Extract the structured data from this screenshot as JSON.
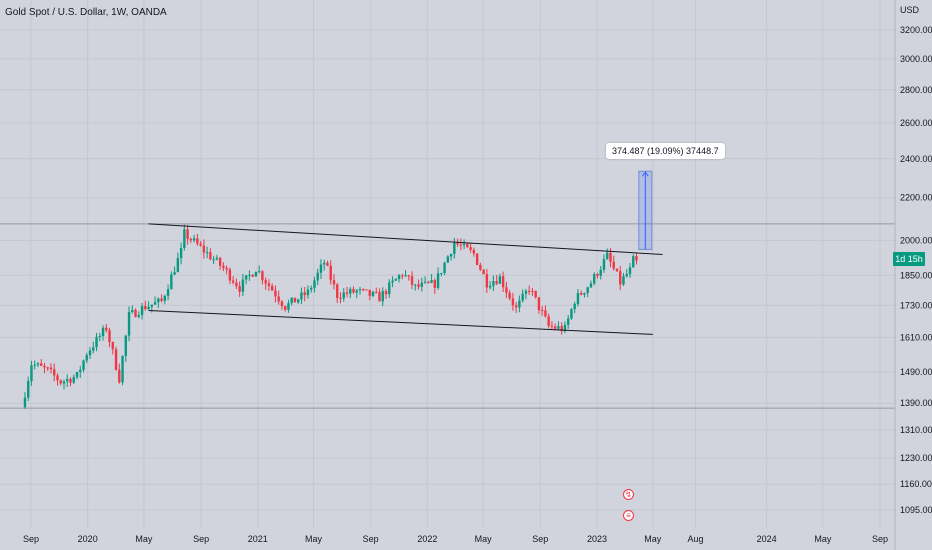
{
  "chart_data": {
    "type": "candlestick",
    "title": "Gold Spot / U.S. Dollar, 1W, OANDA",
    "y_unit": "USD",
    "scale": "log",
    "ylim": [
      1050,
      3450
    ],
    "y_ticks": [
      "3200.000",
      "3000.000",
      "2800.000",
      "2600.000",
      "2400.000",
      "2200.000",
      "2000.000",
      "1850.000",
      "1730.000",
      "1610.000",
      "1490.000",
      "1390.000",
      "1310.000",
      "1230.000",
      "1160.000",
      "1095.000"
    ],
    "x_ticks": [
      "Sep",
      "2020",
      "May",
      "Sep",
      "2021",
      "May",
      "Sep",
      "2022",
      "May",
      "Sep",
      "2023",
      "May",
      "Aug",
      "2024",
      "May",
      "Sep"
    ],
    "x_tick_dates": [
      "2019-09-01",
      "2020-01-01",
      "2020-05-01",
      "2020-09-01",
      "2021-01-01",
      "2021-05-01",
      "2021-09-01",
      "2022-01-01",
      "2022-05-01",
      "2022-09-01",
      "2023-01-01",
      "2023-05-01",
      "2023-08-01",
      "2024-01-01",
      "2024-05-01",
      "2024-09-01"
    ],
    "current_price_label": "1d 15h",
    "current_price": 1912,
    "measure_label": "374.487 (19.09%) 37448.7",
    "measure_range": {
      "from_date": "2023-04-01",
      "to_date": "2023-04-29",
      "low": 1960,
      "high": 2334
    },
    "channel_lines": [
      {
        "from": [
          "2020-05-11",
          2075
        ],
        "to": [
          "2023-05-22",
          1938
        ]
      },
      {
        "from": [
          "2020-05-11",
          1710
        ],
        "to": [
          "2023-05-01",
          1621
        ]
      }
    ],
    "horizontal_lines": [
      2075,
      1375
    ],
    "anchors": [
      [
        "2019-08-19",
        1378
      ],
      [
        "2019-09-09",
        1518
      ],
      [
        "2019-10-14",
        1495
      ],
      [
        "2019-11-11",
        1458
      ],
      [
        "2019-12-16",
        1477
      ],
      [
        "2020-01-06",
        1555
      ],
      [
        "2020-02-17",
        1645
      ],
      [
        "2020-03-16",
        1470
      ],
      [
        "2020-04-06",
        1690
      ],
      [
        "2020-05-11",
        1725
      ],
      [
        "2020-06-15",
        1745
      ],
      [
        "2020-07-27",
        1950
      ],
      [
        "2020-08-03",
        2030
      ],
      [
        "2020-09-14",
        1955
      ],
      [
        "2020-10-26",
        1880
      ],
      [
        "2020-11-30",
        1800
      ],
      [
        "2021-01-04",
        1880
      ],
      [
        "2021-03-08",
        1725
      ],
      [
        "2021-04-26",
        1780
      ],
      [
        "2021-05-31",
        1905
      ],
      [
        "2021-06-28",
        1770
      ],
      [
        "2021-08-09",
        1785
      ],
      [
        "2021-09-27",
        1760
      ],
      [
        "2021-11-15",
        1860
      ],
      [
        "2021-12-13",
        1800
      ],
      [
        "2022-01-24",
        1815
      ],
      [
        "2022-03-07",
        1990
      ],
      [
        "2022-04-18",
        1940
      ],
      [
        "2022-05-16",
        1820
      ],
      [
        "2022-06-13",
        1840
      ],
      [
        "2022-07-18",
        1715
      ],
      [
        "2022-08-15",
        1800
      ],
      [
        "2022-09-26",
        1650
      ],
      [
        "2022-10-31",
        1640
      ],
      [
        "2022-11-21",
        1750
      ],
      [
        "2022-12-26",
        1820
      ],
      [
        "2023-01-30",
        1930
      ],
      [
        "2023-02-27",
        1820
      ],
      [
        "2023-03-20",
        1870
      ],
      [
        "2023-03-27",
        1912
      ]
    ]
  }
}
